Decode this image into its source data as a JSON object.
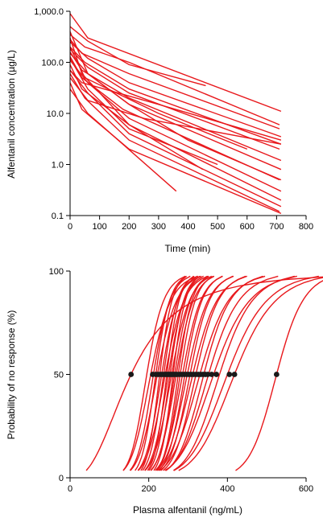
{
  "colors": {
    "curve": "#e8181c",
    "dot": "#1a1a1a",
    "axis": "#000000"
  },
  "chart_data": [
    {
      "type": "line",
      "xlabel": "Time (min)",
      "ylabel": "Alfentanil concentration (µg/L)",
      "xlim": [
        0,
        800
      ],
      "ylim": [
        0.1,
        1000
      ],
      "yscale": "log",
      "xticks": [
        0,
        100,
        200,
        300,
        400,
        500,
        600,
        700,
        800
      ],
      "xtick_labels": [
        "0",
        "100",
        "200",
        "300",
        "400",
        "500",
        "600",
        "700",
        "800"
      ],
      "yticks": [
        0.1,
        1,
        10,
        100,
        1000
      ],
      "ytick_labels": [
        "0.1",
        "1.0",
        "10.0",
        "100.0",
        "1,000.0"
      ],
      "series": [
        {
          "x": [
            0,
            60,
            715
          ],
          "y": [
            900,
            300,
            11
          ]
        },
        {
          "x": [
            0,
            60,
            200,
            460
          ],
          "y": [
            500,
            260,
            90,
            35
          ]
        },
        {
          "x": [
            0,
            50,
            200,
            710
          ],
          "y": [
            350,
            200,
            100,
            6
          ]
        },
        {
          "x": [
            0,
            40,
            200,
            710
          ],
          "y": [
            280,
            150,
            60,
            5
          ]
        },
        {
          "x": [
            0,
            60,
            200,
            715
          ],
          "y": [
            250,
            120,
            40,
            3.5
          ]
        },
        {
          "x": [
            0,
            50,
            200,
            715
          ],
          "y": [
            200,
            100,
            30,
            2.5
          ]
        },
        {
          "x": [
            0,
            60,
            200,
            710
          ],
          "y": [
            180,
            80,
            25,
            2
          ]
        },
        {
          "x": [
            0,
            40,
            200,
            715
          ],
          "y": [
            160,
            70,
            20,
            1.2
          ]
        },
        {
          "x": [
            0,
            60,
            200,
            715
          ],
          "y": [
            150,
            60,
            15,
            0.8
          ]
        },
        {
          "x": [
            0,
            40,
            180,
            710
          ],
          "y": [
            130,
            50,
            12,
            0.5
          ]
        },
        {
          "x": [
            0,
            60,
            200,
            715
          ],
          "y": [
            110,
            40,
            8,
            0.3
          ]
        },
        {
          "x": [
            0,
            40,
            200,
            715
          ],
          "y": [
            90,
            30,
            6,
            0.2
          ]
        },
        {
          "x": [
            0,
            60,
            200,
            715
          ],
          "y": [
            70,
            25,
            4,
            0.15
          ]
        },
        {
          "x": [
            0,
            50,
            200,
            710
          ],
          "y": [
            60,
            20,
            3,
            0.12
          ]
        },
        {
          "x": [
            0,
            40,
            200,
            715
          ],
          "y": [
            40,
            12,
            2,
            0.11
          ]
        },
        {
          "x": [
            0,
            60,
            360
          ],
          "y": [
            30,
            10,
            0.3
          ]
        },
        {
          "x": [
            0,
            40,
            200,
            450
          ],
          "y": [
            300,
            60,
            6,
            0.8
          ]
        },
        {
          "x": [
            0,
            60,
            200,
            500
          ],
          "y": [
            120,
            30,
            5,
            1
          ]
        },
        {
          "x": [
            0,
            50,
            300,
            600
          ],
          "y": [
            200,
            50,
            10,
            2
          ]
        },
        {
          "x": [
            0,
            60,
            200,
            400,
            715
          ],
          "y": [
            400,
            60,
            15,
            3,
            0.5
          ]
        },
        {
          "x": [
            0,
            40,
            300,
            715
          ],
          "y": [
            70,
            40,
            15,
            3
          ]
        },
        {
          "x": [
            0,
            60,
            250,
            715
          ],
          "y": [
            50,
            18,
            8,
            2.5
          ]
        }
      ]
    },
    {
      "type": "line",
      "xlabel": "Plasma alfentanil (ng/mL)",
      "ylabel": "Probability of no response (%)",
      "xlim": [
        0,
        600
      ],
      "ylim": [
        0,
        100
      ],
      "xticks": [
        0,
        200,
        400,
        600
      ],
      "xtick_labels": [
        "0",
        "200",
        "400",
        "600"
      ],
      "yticks": [
        0,
        50,
        100
      ],
      "ytick_labels": [
        "0",
        "50",
        "100"
      ],
      "series": [
        {
          "ec50": 155,
          "gamma": 2.5
        },
        {
          "ec50": 195,
          "gamma": 9
        },
        {
          "ec50": 205,
          "gamma": 8
        },
        {
          "ec50": 212,
          "gamma": 10
        },
        {
          "ec50": 218,
          "gamma": 12
        },
        {
          "ec50": 222,
          "gamma": 9
        },
        {
          "ec50": 228,
          "gamma": 14
        },
        {
          "ec50": 233,
          "gamma": 11
        },
        {
          "ec50": 238,
          "gamma": 13
        },
        {
          "ec50": 242,
          "gamma": 10
        },
        {
          "ec50": 246,
          "gamma": 15
        },
        {
          "ec50": 250,
          "gamma": 12
        },
        {
          "ec50": 254,
          "gamma": 14
        },
        {
          "ec50": 258,
          "gamma": 11
        },
        {
          "ec50": 262,
          "gamma": 16
        },
        {
          "ec50": 266,
          "gamma": 13
        },
        {
          "ec50": 270,
          "gamma": 12
        },
        {
          "ec50": 275,
          "gamma": 15
        },
        {
          "ec50": 280,
          "gamma": 14
        },
        {
          "ec50": 286,
          "gamma": 12
        },
        {
          "ec50": 292,
          "gamma": 13
        },
        {
          "ec50": 298,
          "gamma": 11
        },
        {
          "ec50": 305,
          "gamma": 12
        },
        {
          "ec50": 312,
          "gamma": 10
        },
        {
          "ec50": 320,
          "gamma": 11
        },
        {
          "ec50": 330,
          "gamma": 9
        },
        {
          "ec50": 340,
          "gamma": 10
        },
        {
          "ec50": 352,
          "gamma": 9
        },
        {
          "ec50": 365,
          "gamma": 8
        },
        {
          "ec50": 380,
          "gamma": 9
        },
        {
          "ec50": 400,
          "gamma": 8
        },
        {
          "ec50": 418,
          "gamma": 8
        },
        {
          "ec50": 525,
          "gamma": 15
        }
      ],
      "points": {
        "y": 50,
        "x": [
          155,
          210,
          218,
          224,
          230,
          235,
          240,
          244,
          248,
          252,
          256,
          260,
          264,
          268,
          272,
          278,
          284,
          290,
          296,
          302,
          308,
          314,
          320,
          326,
          332,
          338,
          344,
          350,
          360,
          372,
          405,
          418,
          525
        ]
      }
    }
  ]
}
